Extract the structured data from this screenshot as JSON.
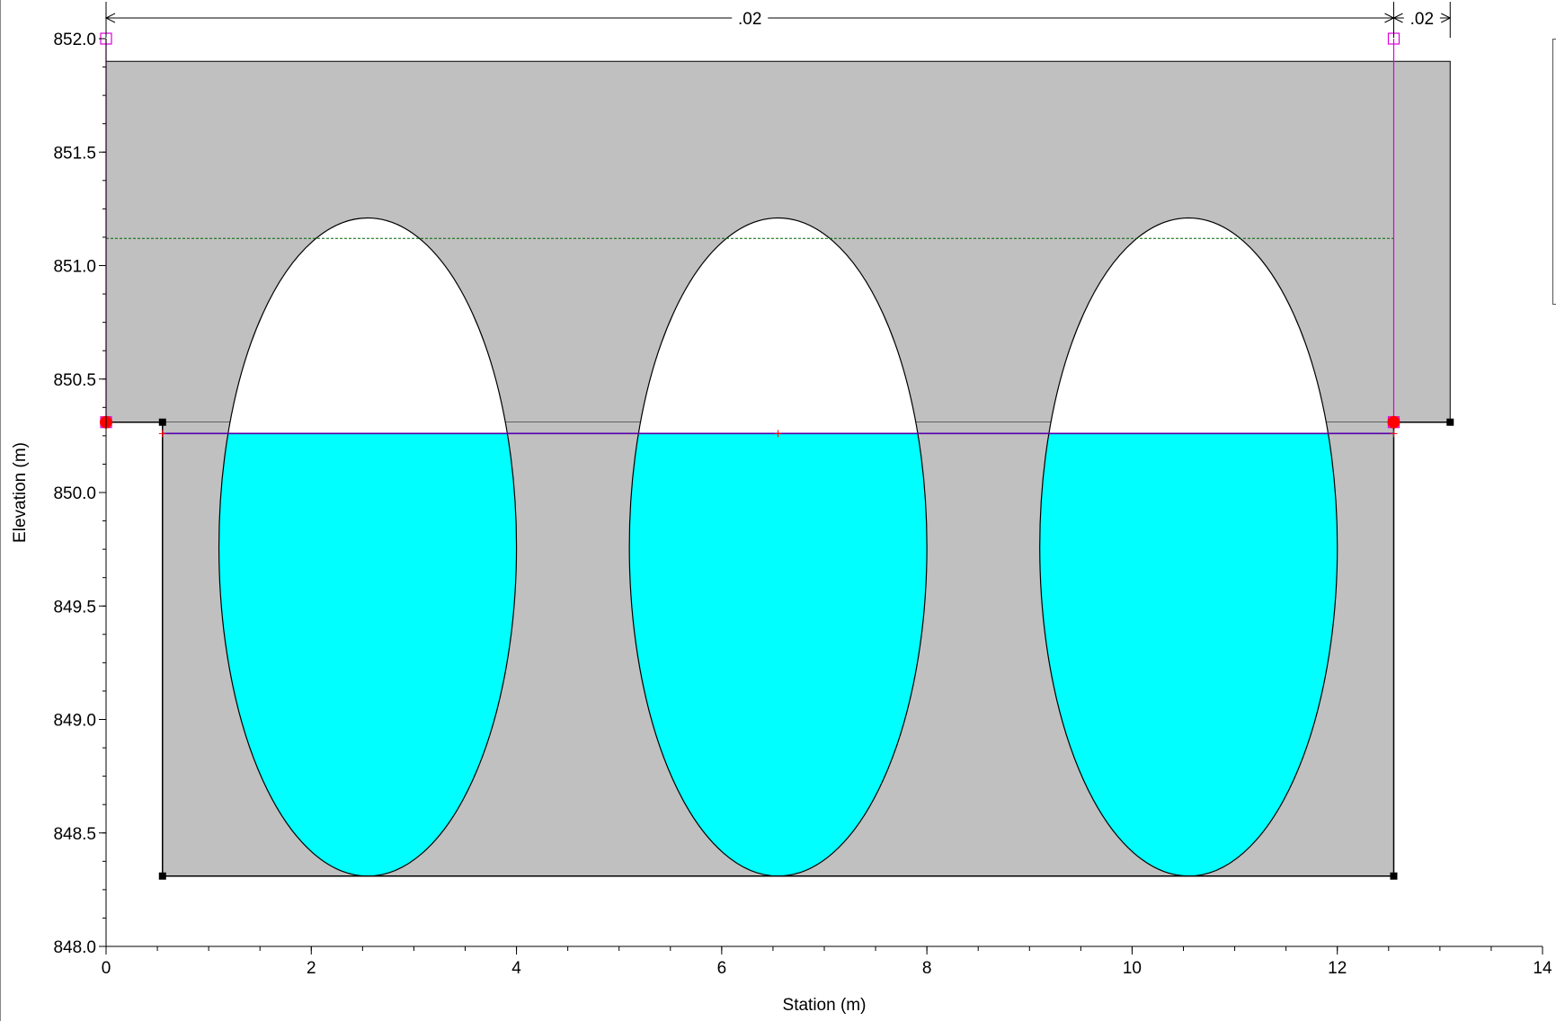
{
  "chart_data": {
    "type": "area",
    "xlabel": "Station (m)",
    "ylabel": "Elevation (m)",
    "xlim": [
      0,
      14
    ],
    "ylim": [
      848.0,
      852.0
    ],
    "x_ticks": [
      {
        "value": 0,
        "label": "0"
      },
      {
        "value": 2,
        "label": "2"
      },
      {
        "value": 4,
        "label": "4"
      },
      {
        "value": 6,
        "label": "6"
      },
      {
        "value": 8,
        "label": "8"
      },
      {
        "value": 10,
        "label": "10"
      },
      {
        "value": 12,
        "label": "12"
      },
      {
        "value": 14,
        "label": "14"
      }
    ],
    "y_ticks": [
      {
        "value": 848.0,
        "label": "848.0"
      },
      {
        "value": 848.5,
        "label": "848.5"
      },
      {
        "value": 849.0,
        "label": "849.0"
      },
      {
        "value": 849.5,
        "label": "849.5"
      },
      {
        "value": 850.0,
        "label": "850.0"
      },
      {
        "value": 850.5,
        "label": "850.5"
      },
      {
        "value": 851.0,
        "label": "851.0"
      },
      {
        "value": 851.5,
        "label": "851.5"
      },
      {
        "value": 852.0,
        "label": "852.0"
      }
    ],
    "grid": false,
    "deck": {
      "x_start": 0.0,
      "x_end": 13.1,
      "top": 851.9,
      "bottom": 850.31
    },
    "ground_profile": [
      {
        "x": 0.0,
        "y": 850.31
      },
      {
        "x": 0.55,
        "y": 850.31
      },
      {
        "x": 0.55,
        "y": 848.31
      },
      {
        "x": 12.55,
        "y": 848.31
      },
      {
        "x": 12.55,
        "y": 850.31
      },
      {
        "x": 13.1,
        "y": 850.31
      }
    ],
    "culverts": [
      {
        "center_x": 2.55,
        "center_y": 849.76,
        "span": 2.9,
        "rise": 2.9
      },
      {
        "center_x": 6.55,
        "center_y": 849.76,
        "span": 2.9,
        "rise": 2.9
      },
      {
        "center_x": 10.55,
        "center_y": 849.76,
        "span": 2.9,
        "rise": 2.9
      }
    ],
    "water_surface": {
      "elevation": 850.26,
      "x_start": 0.55,
      "x_end": 12.55,
      "color": "#00ffff",
      "line_color": "#5500aa"
    },
    "energy_grade_line": {
      "elevation": 851.12,
      "x_start": 0.0,
      "x_end": 12.55,
      "color": "#006600"
    },
    "ineffective_area_lines": [
      {
        "x": 0.0,
        "y_bottom": 850.31,
        "y_top": 852.0
      },
      {
        "x": 12.55,
        "y_bottom": 850.31,
        "y_top": 852.0
      }
    ],
    "bank_stations": [
      {
        "x": 0.0,
        "y": 850.31
      },
      {
        "x": 12.55,
        "y": 850.31
      }
    ],
    "ground_points": [
      {
        "x": 0.55,
        "y": 850.31
      },
      {
        "x": 0.55,
        "y": 848.31
      },
      {
        "x": 12.55,
        "y": 848.31
      },
      {
        "x": 13.1,
        "y": 850.31
      }
    ],
    "manning_n": [
      {
        "label": ".02",
        "x_start": 0.0,
        "x_end": 12.55
      },
      {
        "label": ".02",
        "x_start": 12.55,
        "x_end": 13.1
      }
    ],
    "colors": {
      "deck": "#c0c0c0",
      "water": "#00ffff",
      "ineffective": "#dd00dd",
      "bank_station": "#ff0000",
      "outline": "#000000"
    }
  }
}
